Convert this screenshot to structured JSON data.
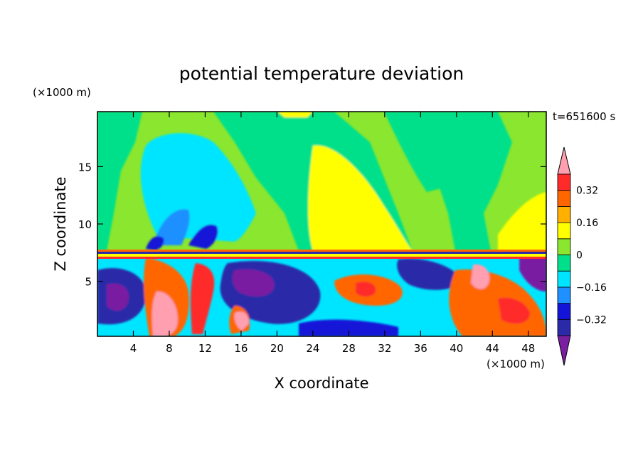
{
  "chart_data": {
    "type": "heatmap",
    "title": "potential temperature deviation",
    "xlabel": "X coordinate",
    "ylabel": "Z coordinate",
    "x_unit": "(×1000 m)",
    "y_unit": "(×1000 m)",
    "time_label": "t=651600 s",
    "xlim": [
      0,
      50
    ],
    "ylim": [
      0.2,
      19.8
    ],
    "x_ticks": [
      4,
      8,
      12,
      16,
      20,
      24,
      28,
      32,
      36,
      40,
      44,
      48
    ],
    "y_ticks": [
      5,
      10,
      15
    ],
    "colorbar": {
      "levels": [
        -0.4,
        -0.32,
        -0.24,
        -0.16,
        -0.08,
        0,
        0.08,
        0.16,
        0.24,
        0.32,
        0.4
      ],
      "labels": [
        {
          "value": 0.32,
          "text": "0.32"
        },
        {
          "value": 0.16,
          "text": "0.16"
        },
        {
          "value": 0,
          "text": "0"
        },
        {
          "value": -0.16,
          "text": "−0.16"
        },
        {
          "value": -0.32,
          "text": "−0.32"
        }
      ],
      "colors": [
        "#7a1fa2",
        "#2a2aa8",
        "#1414d8",
        "#1e90ff",
        "#00e5ff",
        "#00e08a",
        "#8ae62e",
        "#ffff00",
        "#ffb000",
        "#ff6600",
        "#ff2a2a",
        "#ff9fb0"
      ]
    },
    "regions": [
      {
        "name": "upper background",
        "x": [
          0,
          50
        ],
        "z": [
          7.6,
          19.8
        ],
        "value": 0.05
      },
      {
        "name": "cold upper plume",
        "x": [
          4,
          15
        ],
        "z": [
          10,
          17.8
        ],
        "value": -0.13
      },
      {
        "name": "warm upper region",
        "x": [
          23,
          35
        ],
        "z": [
          7.6,
          16
        ],
        "value": 0.12
      },
      {
        "name": "warm upper right",
        "x": [
          43,
          50
        ],
        "z": [
          7.6,
          13
        ],
        "value": 0.12
      },
      {
        "name": "cold upper right",
        "x": [
          33,
          42
        ],
        "z": [
          10,
          19.8
        ],
        "value": 0.02
      },
      {
        "name": "warm top strip",
        "x": [
          19,
          24
        ],
        "z": [
          19.3,
          19.8
        ],
        "value": 0.12
      },
      {
        "name": "warm plume",
        "x": [
          8,
          11
        ],
        "z": [
          0.2,
          5
        ],
        "value": 0.38
      },
      {
        "name": "cold lower left",
        "x": [
          0,
          6
        ],
        "z": [
          1,
          4
        ],
        "value": -0.34
      },
      {
        "name": "cold eddy",
        "x": [
          16,
          26
        ],
        "z": [
          0.5,
          6
        ],
        "value": -0.33
      },
      {
        "name": "warm eddy right",
        "x": [
          38,
          50
        ],
        "z": [
          0.5,
          6
        ],
        "value": 0.32
      }
    ]
  }
}
